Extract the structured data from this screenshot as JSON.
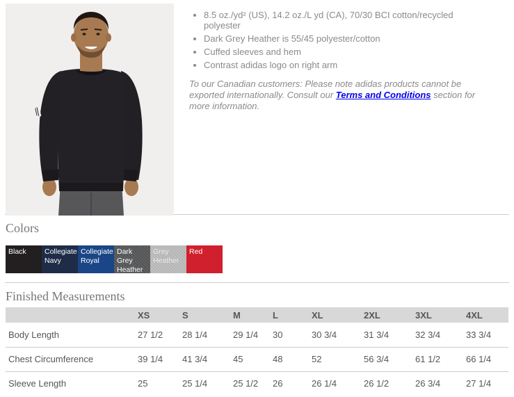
{
  "palette": {
    "divider": "#cbcbcb",
    "table_header_bg": "#d8d8d8",
    "text_grey": "#8a8a8a",
    "table_text": "#55565a",
    "heading": "#76777a",
    "link_blue": "#0000ee",
    "photo_bg": "#f1efed"
  },
  "product": {
    "photo_alt": "Model wearing black adidas crewneck sweatshirt",
    "bullets": [
      "8.5 oz./yd² (US), 14.2 oz./L yd (CA), 70/30 BCI cotton/recycled polyester",
      "Dark Grey Heather is 55/45 polyester/cotton",
      "Cuffed sleeves and hem",
      "Contrast adidas logo on right arm"
    ],
    "note": {
      "text_before": "To our Canadian customers: Please note adidas products cannot be exported internationally. Consult our ",
      "link_label": "Terms and Conditions",
      "text_after": " section for more information."
    }
  },
  "colors_section": {
    "title": "Colors",
    "swatches": [
      {
        "name": "Black",
        "bg": "#231f20",
        "text_color": "#ffffff",
        "heather": false
      },
      {
        "name": "Collegiate Navy",
        "bg": "#1e2c47",
        "text_color": "#ffffff",
        "heather": false
      },
      {
        "name": "Collegiate Royal",
        "bg": "#1a4688",
        "text_color": "#ffffff",
        "heather": false
      },
      {
        "name": "Dark Grey Heather",
        "bg": "#58595b",
        "text_color": "#ffffff",
        "heather": true
      },
      {
        "name": "Grey Heather",
        "bg": "#c2c1c1",
        "text_color": "#ebebeb",
        "heather": true
      },
      {
        "name": "Red",
        "bg": "#d1202d",
        "text_color": "#ffffff",
        "heather": false
      }
    ]
  },
  "measurements": {
    "title": "Finished Measurements",
    "columns": [
      "XS",
      "S",
      "M",
      "L",
      "XL",
      "2XL",
      "3XL",
      "4XL"
    ],
    "rows": [
      {
        "label": "Body Length",
        "values": [
          "27 1/2",
          "28 1/4",
          "29 1/4",
          "30",
          "30 3/4",
          "31 3/4",
          "32 3/4",
          "33 3/4"
        ]
      },
      {
        "label": "Chest Circumference",
        "values": [
          "39 1/4",
          "41 3/4",
          "45",
          "48",
          "52",
          "56 3/4",
          "61 1/2",
          "66 1/4"
        ]
      },
      {
        "label": "Sleeve Length",
        "values": [
          "25",
          "25 1/4",
          "25 1/2",
          "26",
          "26 1/4",
          "26 1/2",
          "26 3/4",
          "27 1/4"
        ]
      }
    ]
  }
}
